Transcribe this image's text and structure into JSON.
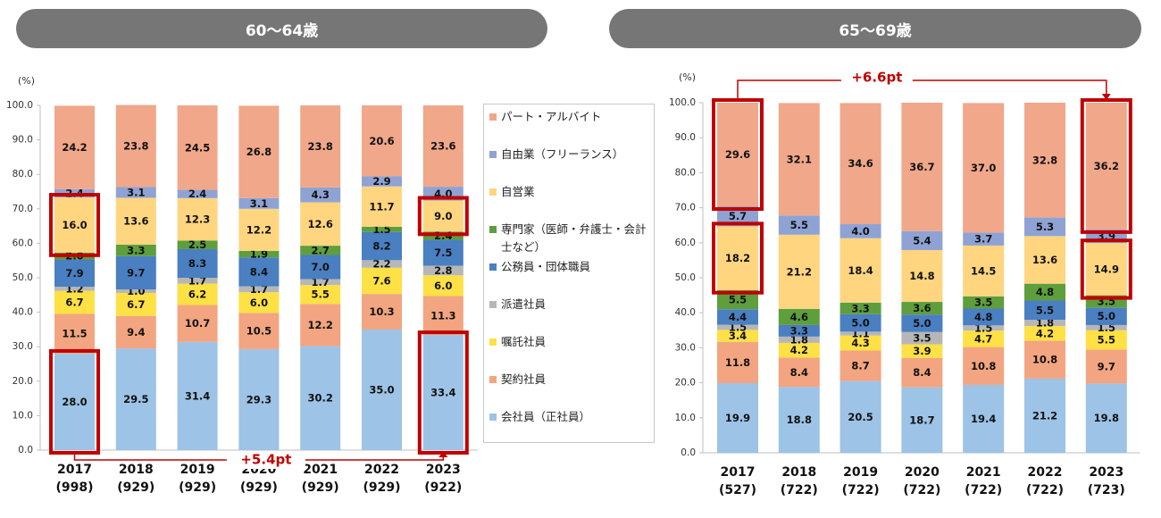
{
  "panels": [
    {
      "title": "60〜64歳"
    },
    {
      "title": "65〜69歳"
    }
  ],
  "legend": [
    {
      "label": "パート・アルバイト",
      "color": "#F0A78A"
    },
    {
      "label": "自由業（フリーランス）",
      "color": "#8EA3D4"
    },
    {
      "label": "自営業",
      "color": "#FFD580"
    },
    {
      "label": "専門家（医師・弁護士・会計士など）",
      "color": "#5E9E3C"
    },
    {
      "label": "公務員・団体職員",
      "color": "#4A7FC1"
    },
    {
      "label": "派遣社員",
      "color": "#B7B7B7"
    },
    {
      "label": "嘱託社員",
      "color": "#FFE045"
    },
    {
      "label": "契約社員",
      "color": "#F2A580"
    },
    {
      "label": "会社員（正社員）",
      "color": "#9DC3E6"
    }
  ],
  "chart_data": [
    {
      "type": "bar",
      "stacked": true,
      "title": "60〜64歳",
      "ylabel": "(%)",
      "ylim": [
        0,
        100
      ],
      "yticks": [
        "0.0",
        "10.0",
        "20.0",
        "30.0",
        "40.0",
        "50.0",
        "60.0",
        "70.0",
        "80.0",
        "90.0",
        "100.0"
      ],
      "categories": [
        "2017",
        "2018",
        "2019",
        "2020",
        "2021",
        "2022",
        "2023"
      ],
      "sample_sizes": [
        "(998)",
        "(929)",
        "(929)",
        "(929)",
        "(929)",
        "(929)",
        "(922)"
      ],
      "series": [
        {
          "name": "会社員（正社員）",
          "values": [
            28.0,
            29.5,
            31.4,
            29.3,
            30.2,
            35.0,
            33.4
          ]
        },
        {
          "name": "契約社員",
          "values": [
            11.5,
            9.4,
            10.7,
            10.5,
            12.2,
            10.3,
            11.3
          ]
        },
        {
          "name": "嘱託社員",
          "values": [
            6.7,
            6.7,
            6.2,
            6.0,
            5.5,
            7.6,
            6.0
          ]
        },
        {
          "name": "派遣社員",
          "values": [
            1.2,
            1.0,
            1.7,
            1.7,
            1.7,
            2.2,
            2.8
          ]
        },
        {
          "name": "公務員・団体職員",
          "values": [
            7.9,
            9.7,
            8.3,
            8.4,
            7.0,
            8.2,
            7.5
          ]
        },
        {
          "name": "専門家（医師・弁護士・会計士など）",
          "values": [
            2.0,
            3.3,
            2.5,
            1.9,
            2.7,
            1.5,
            2.4
          ]
        },
        {
          "name": "自営業",
          "values": [
            16.0,
            13.6,
            12.3,
            12.2,
            12.6,
            11.7,
            9.0
          ]
        },
        {
          "name": "自由業（フリーランス）",
          "values": [
            2.4,
            3.1,
            2.4,
            3.1,
            4.3,
            2.9,
            4.0
          ]
        },
        {
          "name": "パート・アルバイト",
          "values": [
            24.2,
            23.8,
            24.5,
            26.8,
            23.8,
            20.6,
            23.6
          ]
        }
      ],
      "annotation": "+5.4pt"
    },
    {
      "type": "bar",
      "stacked": true,
      "title": "65〜69歳",
      "ylabel": "(%)",
      "ylim": [
        0,
        100
      ],
      "yticks": [
        "0.0",
        "10.0",
        "20.0",
        "30.0",
        "40.0",
        "50.0",
        "60.0",
        "70.0",
        "80.0",
        "90.0",
        "100.0"
      ],
      "categories": [
        "2017",
        "2018",
        "2019",
        "2020",
        "2021",
        "2022",
        "2023"
      ],
      "sample_sizes": [
        "(527)",
        "(722)",
        "(722)",
        "(722)",
        "(722)",
        "(722)",
        "(723)"
      ],
      "series": [
        {
          "name": "会社員（正社員）",
          "values": [
            19.9,
            18.8,
            20.5,
            18.7,
            19.4,
            21.2,
            19.8
          ]
        },
        {
          "name": "契約社員",
          "values": [
            11.8,
            8.4,
            8.7,
            8.4,
            10.8,
            10.8,
            9.7
          ]
        },
        {
          "name": "嘱託社員",
          "values": [
            3.4,
            4.2,
            4.3,
            3.9,
            4.7,
            4.2,
            5.5
          ]
        },
        {
          "name": "派遣社員",
          "values": [
            1.5,
            1.8,
            1.1,
            3.5,
            1.5,
            1.8,
            1.5
          ]
        },
        {
          "name": "公務員・団体職員",
          "values": [
            4.4,
            3.3,
            5.0,
            5.0,
            4.8,
            5.5,
            5.0
          ]
        },
        {
          "name": "専門家（医師・弁護士・会計士など）",
          "values": [
            5.5,
            4.6,
            3.3,
            3.6,
            3.5,
            4.8,
            3.5
          ]
        },
        {
          "name": "自営業",
          "values": [
            18.2,
            21.2,
            18.4,
            14.8,
            14.5,
            13.6,
            14.9
          ]
        },
        {
          "name": "自由業（フリーランス）",
          "values": [
            5.7,
            5.5,
            4.0,
            5.4,
            3.7,
            5.3,
            3.9
          ]
        },
        {
          "name": "パート・アルバイト",
          "values": [
            29.6,
            32.1,
            34.6,
            36.7,
            37.0,
            32.8,
            36.2
          ]
        }
      ],
      "annotation": "+6.6pt"
    }
  ]
}
